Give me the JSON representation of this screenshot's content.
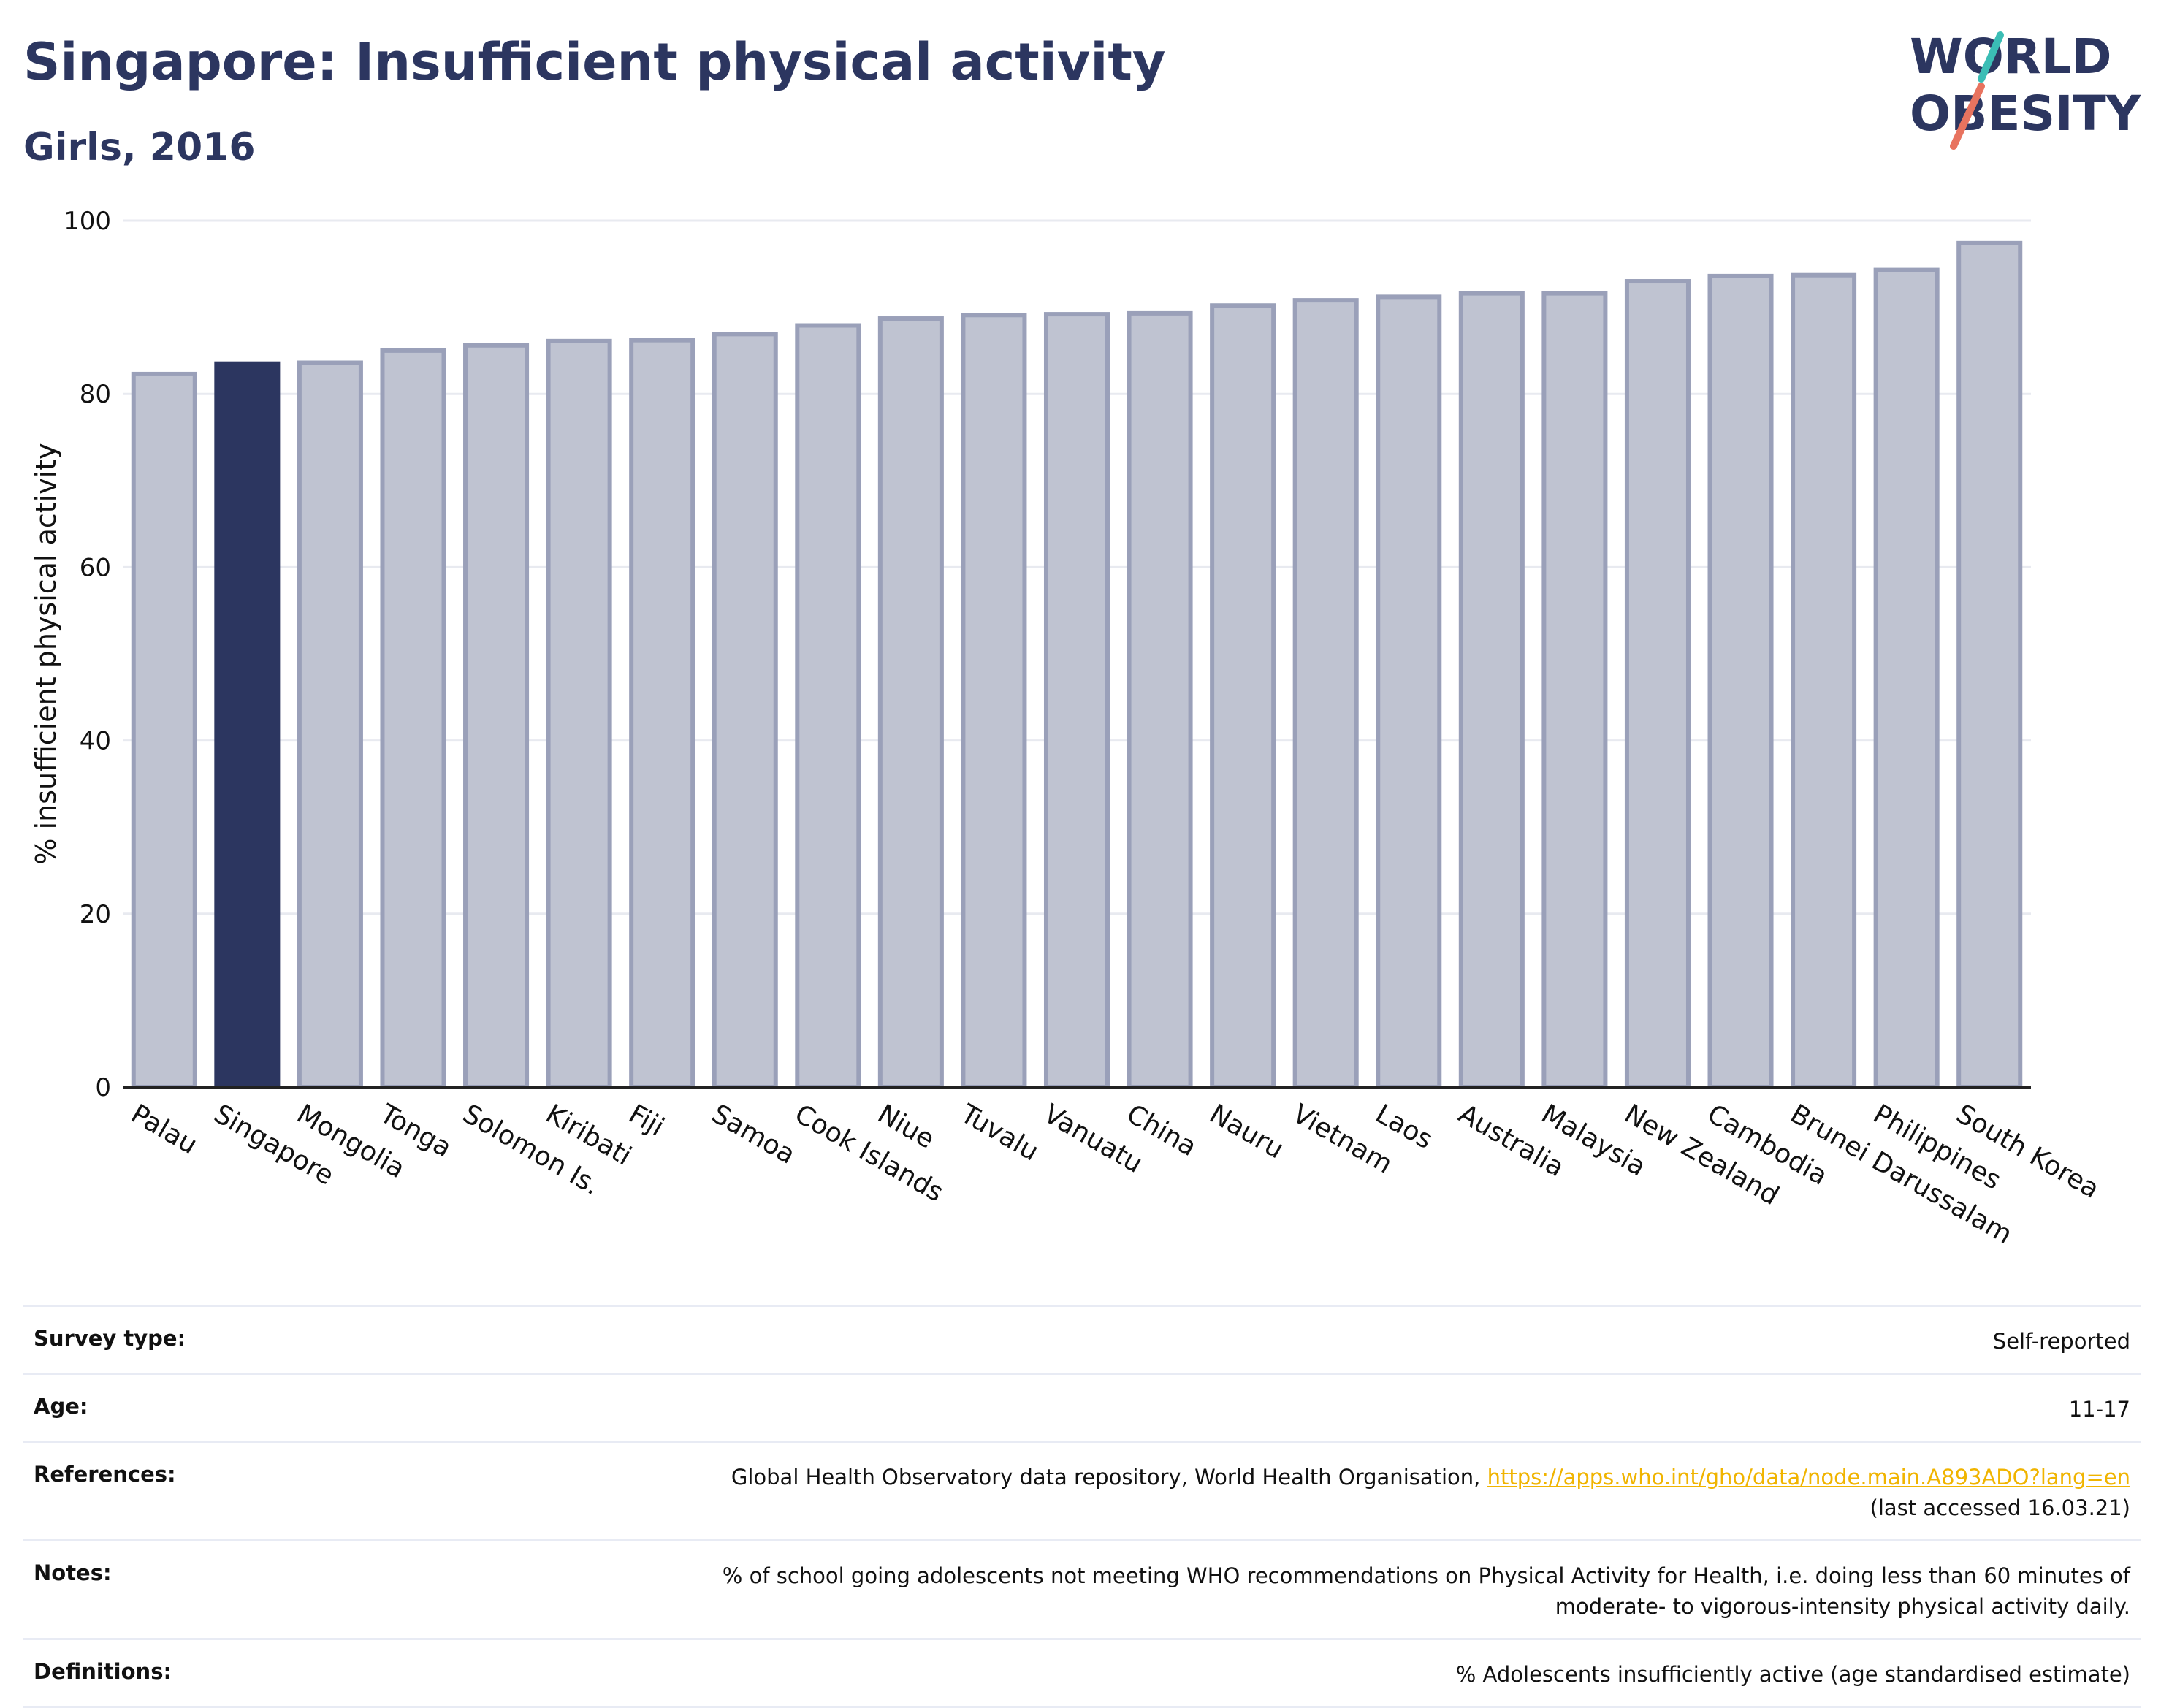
{
  "header": {
    "title": "Singapore: Insufficient physical activity",
    "subtitle": "Girls, 2016"
  },
  "logo": {
    "line1": "WORLD",
    "line2": "OBESITY",
    "text_color": "#2c3660",
    "slash_colors": [
      "#3bbdb5",
      "#e8735f"
    ]
  },
  "chart_data": {
    "type": "bar",
    "categories": [
      "Palau",
      "Singapore",
      "Mongolia",
      "Tonga",
      "Solomon Is.",
      "Kiribati",
      "Fiji",
      "Samoa",
      "Cook Islands",
      "Niue",
      "Tuvalu",
      "Vanuatu",
      "China",
      "Nauru",
      "Vietnam",
      "Laos",
      "Australia",
      "Malaysia",
      "New Zealand",
      "Cambodia",
      "Brunei Darussalam",
      "Philippines",
      "South Korea"
    ],
    "values": [
      82.3,
      83.5,
      83.6,
      85.0,
      85.6,
      86.1,
      86.2,
      86.9,
      87.9,
      88.7,
      89.1,
      89.2,
      89.3,
      90.2,
      90.8,
      91.2,
      91.6,
      91.6,
      93.0,
      93.6,
      93.7,
      94.3,
      97.4
    ],
    "highlight": "Singapore",
    "xlabel": "",
    "ylabel": "% insufficient physical activity",
    "ylim": [
      0,
      100
    ],
    "yticks": [
      0,
      20,
      40,
      60,
      80,
      100
    ],
    "grid": true,
    "colors": {
      "bar": "#bfc3d1",
      "bar_outline": "#9aa0b9",
      "highlight": "#2c3660",
      "grid": "#e8eaf0",
      "axis": "#222222"
    }
  },
  "info": {
    "survey_type": {
      "label": "Survey type:",
      "value": "Self-reported"
    },
    "age": {
      "label": "Age:",
      "value": "11-17"
    },
    "references": {
      "label": "References:",
      "text": "Global Health Observatory data repository, World Health Organisation,",
      "link": "https://apps.who.int/gho/data/node.main.A893ADO?lang=en",
      "accessed": "(last accessed 16.03.21)"
    },
    "notes": {
      "label": "Notes:",
      "line1": "% of school going adolescents not meeting WHO recommendations on Physical Activity for Health, i.e. doing less than 60 minutes of",
      "line2": "moderate- to vigorous-intensity physical activity daily."
    },
    "definitions": {
      "label": "Definitions:",
      "value": "% Adolescents insufficiently active (age standardised estimate)"
    }
  }
}
